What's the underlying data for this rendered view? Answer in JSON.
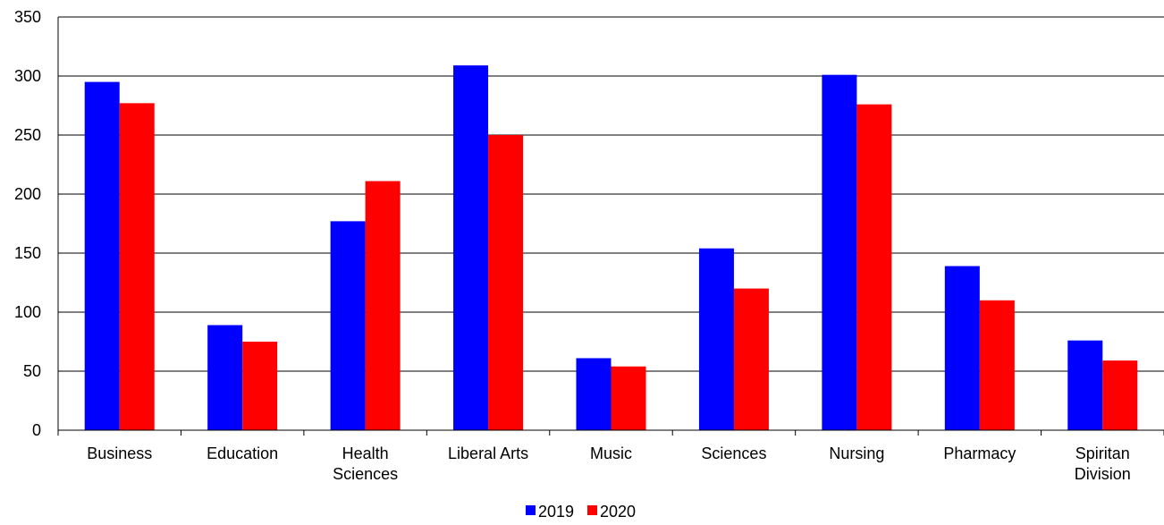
{
  "chart_data": {
    "type": "bar",
    "categories": [
      [
        "Business"
      ],
      [
        "Education"
      ],
      [
        "Health",
        "Sciences"
      ],
      [
        "Liberal Arts"
      ],
      [
        "Music"
      ],
      [
        "Sciences"
      ],
      [
        "Nursing"
      ],
      [
        "Pharmacy"
      ],
      [
        "Spiritan",
        "Division"
      ]
    ],
    "series": [
      {
        "name": "2019",
        "color": "#0000ff",
        "values": [
          295,
          89,
          177,
          309,
          61,
          154,
          301,
          139,
          76
        ]
      },
      {
        "name": "2020",
        "color": "#ff0000",
        "values": [
          277,
          75,
          211,
          250,
          54,
          120,
          276,
          110,
          59
        ]
      }
    ],
    "yticks": [
      "0",
      "50",
      "100",
      "150",
      "200",
      "250",
      "300",
      "350"
    ],
    "ylim": [
      0,
      350
    ],
    "grid": true,
    "legend": "bottom-center",
    "title": "",
    "xlabel": "",
    "ylabel": ""
  }
}
